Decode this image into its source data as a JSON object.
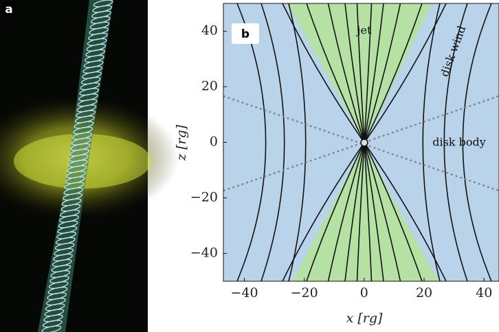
{
  "panel_labels": [
    "a",
    "b"
  ],
  "chart_data": {
    "type": "streamplot",
    "xlabel": "x [rg]",
    "ylabel": "z [rg]",
    "xlim": [
      -47,
      45
    ],
    "ylim": [
      -50,
      50
    ],
    "xticks": [
      {
        "value": -40,
        "label": "−40"
      },
      {
        "value": -20,
        "label": "−20"
      },
      0,
      20,
      40
    ],
    "yticks": [
      {
        "value": -40,
        "label": "−40"
      },
      {
        "value": -20,
        "label": "−20"
      },
      0,
      20,
      40
    ],
    "annotations": [
      "jet",
      "disk wind",
      "disk body"
    ]
  }
}
